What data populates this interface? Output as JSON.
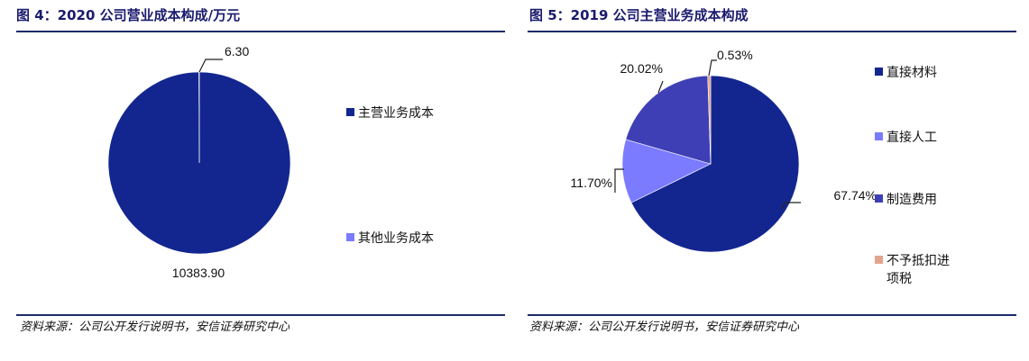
{
  "charts": [
    {
      "title": "图 4：2020 公司营业成本构成/万元",
      "source": "资料来源：公司公开发行说明书，安信证券研究中心",
      "chart_data": {
        "type": "pie",
        "title": "图 4：2020 公司营业成本构成/万元",
        "categories": [
          "主营业务成本",
          "其他业务成本"
        ],
        "values": [
          10383.9,
          6.3
        ],
        "data_labels": [
          "10383.90",
          "6.30"
        ],
        "colors": [
          "#13268f",
          "#7b7bff"
        ],
        "legend": "right"
      }
    },
    {
      "title": "图 5：2019 公司主营业务成本构成",
      "source": "资料来源：公司公开发行说明书，安信证券研究中心",
      "chart_data": {
        "type": "pie",
        "title": "图 5：2019 公司主营业务成本构成",
        "categories": [
          "直接材料",
          "直接人工",
          "制造费用",
          "不予抵扣进项税"
        ],
        "legend_labels": [
          [
            "直接材料"
          ],
          [
            "直接人工"
          ],
          [
            "制造费用"
          ],
          [
            "不予抵扣进",
            "项税"
          ]
        ],
        "values": [
          67.74,
          11.7,
          20.02,
          0.53
        ],
        "data_labels": [
          "67.74%",
          "11.70%",
          "20.02%",
          "0.53%"
        ],
        "colors": [
          "#13268f",
          "#7b7bff",
          "#3f3fb5",
          "#e2a48c"
        ],
        "legend": "right"
      }
    }
  ]
}
